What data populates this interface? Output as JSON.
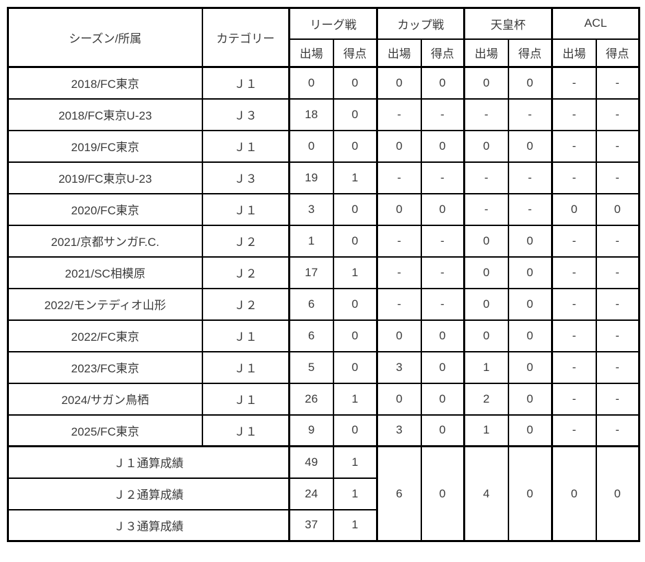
{
  "colors": {
    "border": "#000000",
    "text": "#3b3b3b",
    "background": "#ffffff"
  },
  "table": {
    "header": {
      "season_club": "シーズン/所属",
      "category": "カテゴリー",
      "groups": [
        {
          "label": "リーグ戦"
        },
        {
          "label": "カップ戦"
        },
        {
          "label": "天皇杯"
        },
        {
          "label": "ACL"
        }
      ],
      "sub_apps": "出場",
      "sub_goals": "得点"
    },
    "rows": [
      {
        "season_club": "2018/FC東京",
        "category": "Ｊ１",
        "stats": [
          "0",
          "0",
          "0",
          "0",
          "0",
          "0",
          "-",
          "-"
        ]
      },
      {
        "season_club": "2018/FC東京U-23",
        "category": "Ｊ３",
        "stats": [
          "18",
          "0",
          "-",
          "-",
          "-",
          "-",
          "-",
          "-"
        ]
      },
      {
        "season_club": "2019/FC東京",
        "category": "Ｊ１",
        "stats": [
          "0",
          "0",
          "0",
          "0",
          "0",
          "0",
          "-",
          "-"
        ]
      },
      {
        "season_club": "2019/FC東京U-23",
        "category": "Ｊ３",
        "stats": [
          "19",
          "1",
          "-",
          "-",
          "-",
          "-",
          "-",
          "-"
        ]
      },
      {
        "season_club": "2020/FC東京",
        "category": "Ｊ１",
        "stats": [
          "3",
          "0",
          "0",
          "0",
          "-",
          "-",
          "0",
          "0"
        ]
      },
      {
        "season_club": "2021/京都サンガF.C.",
        "category": "Ｊ２",
        "stats": [
          "1",
          "0",
          "-",
          "-",
          "0",
          "0",
          "-",
          "-"
        ]
      },
      {
        "season_club": "2021/SC相模原",
        "category": "Ｊ２",
        "stats": [
          "17",
          "1",
          "-",
          "-",
          "0",
          "0",
          "-",
          "-"
        ]
      },
      {
        "season_club": "2022/モンテディオ山形",
        "category": "Ｊ２",
        "stats": [
          "6",
          "0",
          "-",
          "-",
          "0",
          "0",
          "-",
          "-"
        ]
      },
      {
        "season_club": "2022/FC東京",
        "category": "Ｊ１",
        "stats": [
          "6",
          "0",
          "0",
          "0",
          "0",
          "0",
          "-",
          "-"
        ]
      },
      {
        "season_club": "2023/FC東京",
        "category": "Ｊ１",
        "stats": [
          "5",
          "0",
          "3",
          "0",
          "1",
          "0",
          "-",
          "-"
        ]
      },
      {
        "season_club": "2024/サガン鳥栖",
        "category": "Ｊ１",
        "stats": [
          "26",
          "1",
          "0",
          "0",
          "2",
          "0",
          "-",
          "-"
        ]
      },
      {
        "season_club": "2025/FC東京",
        "category": "Ｊ１",
        "stats": [
          "9",
          "0",
          "3",
          "0",
          "1",
          "0",
          "-",
          "-"
        ]
      }
    ],
    "totals": [
      {
        "label": "Ｊ１通算成績",
        "league_apps": "49",
        "league_goals": "1"
      },
      {
        "label": "Ｊ２通算成績",
        "league_apps": "24",
        "league_goals": "1"
      },
      {
        "label": "Ｊ３通算成績",
        "league_apps": "37",
        "league_goals": "1"
      }
    ],
    "totals_merged": [
      "6",
      "0",
      "4",
      "0",
      "0",
      "0"
    ]
  }
}
